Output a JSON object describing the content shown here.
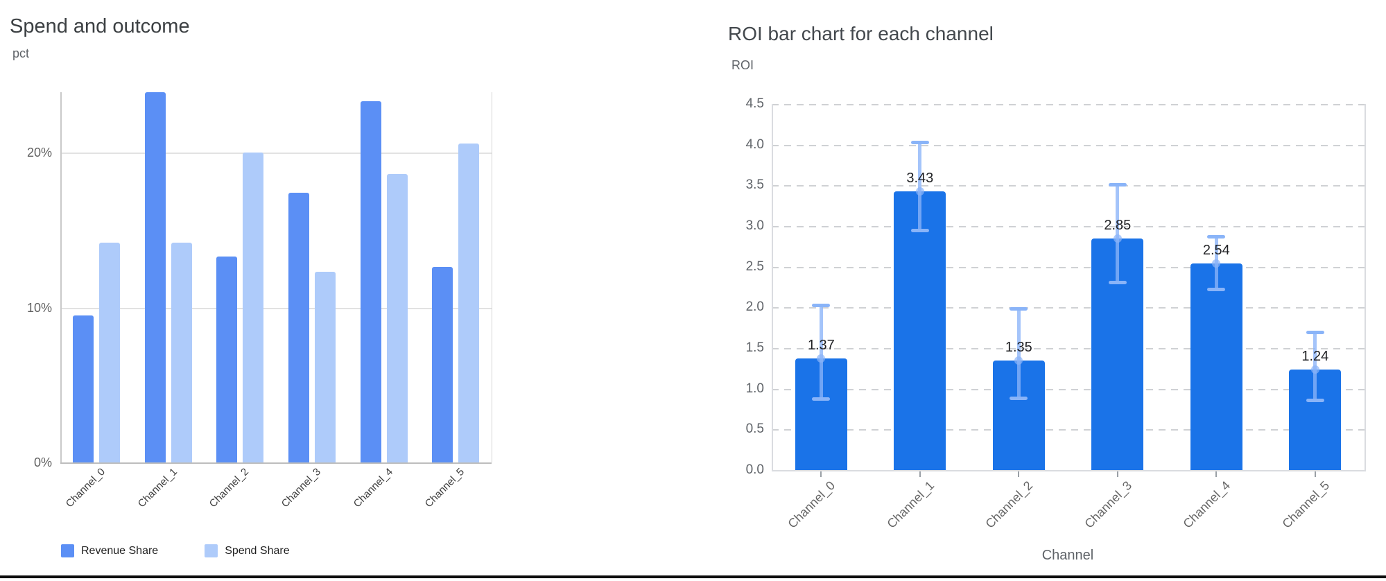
{
  "page": {
    "background": "#ffffff",
    "bottom_border_color": "#0d0d0d"
  },
  "chart_data": [
    {
      "id": "spend_outcome",
      "type": "bar",
      "title": "Spend and outcome",
      "ylabel": "pct",
      "xlabel": "",
      "categories": [
        "Channel_0",
        "Channel_1",
        "Channel_2",
        "Channel_3",
        "Channel_4",
        "Channel_5"
      ],
      "series": [
        {
          "name": "Revenue Share",
          "color": "#5b8ff5",
          "values": [
            9.5,
            23.9,
            13.3,
            17.4,
            23.3,
            12.6
          ]
        },
        {
          "name": "Spend Share",
          "color": "#aecbfa",
          "values": [
            14.2,
            14.2,
            20.0,
            12.3,
            18.6,
            20.6
          ]
        }
      ],
      "unit": "%",
      "ylim": [
        0,
        23.9
      ],
      "yticks": [
        0,
        10,
        20
      ],
      "ytick_labels": [
        "0%",
        "10%",
        "20%"
      ],
      "grid": "solid",
      "legend_position": "bottom-left",
      "x_labels_rotated_deg": -45
    },
    {
      "id": "roi_by_channel",
      "type": "bar",
      "title": "ROI bar chart for each channel",
      "ylabel": "ROI",
      "xlabel": "Channel",
      "categories": [
        "Channel_0",
        "Channel_1",
        "Channel_2",
        "Channel_3",
        "Channel_4",
        "Channel_5"
      ],
      "values": [
        1.37,
        3.43,
        1.35,
        2.85,
        2.54,
        1.24
      ],
      "bar_labels": [
        "1.37",
        "3.43",
        "1.35",
        "2.85",
        "2.54",
        "1.24"
      ],
      "error_bars_low_high": [
        [
          0.87,
          2.03
        ],
        [
          2.94,
          4.03
        ],
        [
          0.88,
          1.99
        ],
        [
          2.3,
          3.51
        ],
        [
          2.22,
          2.87
        ],
        [
          0.85,
          1.7
        ]
      ],
      "bar_color": "#1a73e8",
      "error_color": "#8ab4f8",
      "ylim": [
        0,
        4.5
      ],
      "yticks": [
        0.0,
        0.5,
        1.0,
        1.5,
        2.0,
        2.5,
        3.0,
        3.5,
        4.0,
        4.5
      ],
      "ytick_labels": [
        "0.0",
        "0.5",
        "1.0",
        "1.5",
        "2.0",
        "2.5",
        "3.0",
        "3.5",
        "4.0",
        "4.5"
      ],
      "grid": "dashed",
      "legend_position": "none",
      "x_labels_rotated_deg": -45
    }
  ]
}
